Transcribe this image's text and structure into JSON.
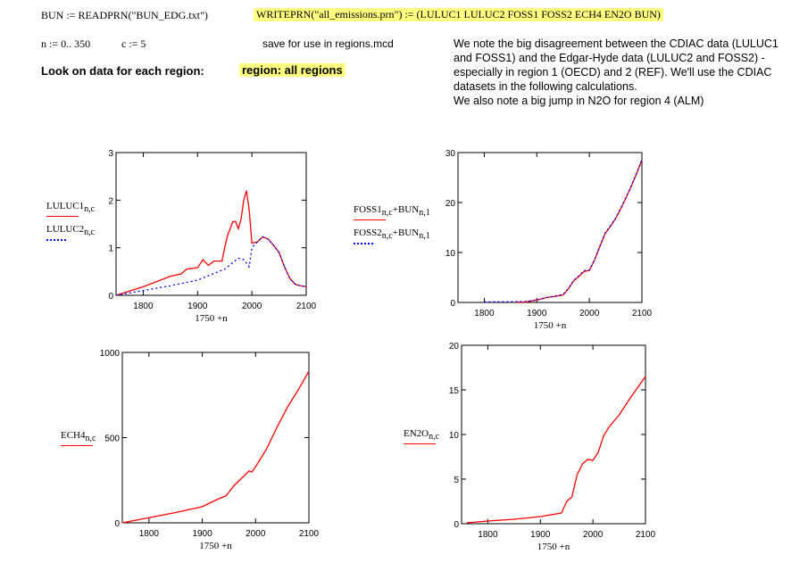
{
  "header": {
    "readprn": "BUN := READPRN(\"BUN_EDG.txt\")",
    "writeprn": "WRITEPRN(\"all_emissions.prn\") := (LULUC1  LULUC2  FOSS1  FOSS2  ECH4  EN2O  BUN)",
    "range_n": "n := 0.. 350",
    "c_def": "c := 5",
    "save_note": "save for use in regions.mcd",
    "look_label": "Look on data for each region:",
    "region_value": "region: all regions",
    "note_lines": [
      "We note the big disagreement between the CDIAC data (LULUC1",
      "and FOSS1) and the Edgar-Hyde data (LULUC2 and FOSS2) -",
      "especially in region 1 (OECD) and 2 (REF). We'll use the CDIAC",
      "datasets in the following calculations.",
      "We also note a big jump in N2O for region 4 (ALM)"
    ]
  },
  "colors": {
    "series1": "#ff0000",
    "series2": "#0000ff",
    "highlight": "#ffff80"
  },
  "chart_data": [
    {
      "type": "line",
      "xlabel": "1750 +n",
      "xlim": [
        1750,
        2100
      ],
      "ylim": [
        0,
        3
      ],
      "xticks": [
        "1800",
        "1900",
        "2000",
        "2100"
      ],
      "yticks": [
        "0",
        "1",
        "2",
        "3"
      ],
      "grid": false,
      "legend": "left",
      "series": [
        {
          "name": "LULUC1",
          "sub": "n,c",
          "style": "solid",
          "color": "#ff0000",
          "x": [
            1750,
            1800,
            1850,
            1870,
            1880,
            1900,
            1910,
            1920,
            1930,
            1945,
            1950,
            1955,
            1965,
            1970,
            1975,
            1980,
            1985,
            1990,
            1995,
            2000,
            2010,
            2020,
            2030,
            2040,
            2050,
            2060,
            2070,
            2080,
            2090,
            2100
          ],
          "y": [
            0,
            0.18,
            0.4,
            0.45,
            0.55,
            0.58,
            0.75,
            0.63,
            0.72,
            0.72,
            1.0,
            1.25,
            1.55,
            1.55,
            1.4,
            1.6,
            2.0,
            2.2,
            1.8,
            1.1,
            1.12,
            1.23,
            1.18,
            1.05,
            0.9,
            0.6,
            0.35,
            0.23,
            0.2,
            0.18
          ]
        },
        {
          "name": "LULUC2",
          "sub": "n,c",
          "style": "dotted",
          "color": "#0000ff",
          "x": [
            1750,
            1800,
            1850,
            1900,
            1950,
            1975,
            1985,
            1995,
            2000,
            2010,
            2020,
            2030,
            2040,
            2050,
            2060,
            2070,
            2080,
            2090,
            2100
          ],
          "y": [
            0,
            0.1,
            0.2,
            0.32,
            0.55,
            0.78,
            0.75,
            0.6,
            1.0,
            1.12,
            1.23,
            1.18,
            1.05,
            0.9,
            0.6,
            0.35,
            0.23,
            0.2,
            0.18
          ]
        }
      ]
    },
    {
      "type": "line",
      "xlabel": "1750 +n",
      "xlim": [
        1750,
        2100
      ],
      "ylim": [
        0,
        30
      ],
      "xticks": [
        "1800",
        "1900",
        "2000",
        "2100"
      ],
      "yticks": [
        "0",
        "10",
        "20",
        "30"
      ],
      "grid": false,
      "legend": "left",
      "series": [
        {
          "name": "FOSS1",
          "sub": "n,c",
          "plus": "+BUN",
          "sub2": "n,1",
          "style": "solid",
          "color": "#ff0000",
          "x": [
            1860,
            1880,
            1900,
            1920,
            1940,
            1950,
            1960,
            1970,
            1980,
            1990,
            2000,
            2010,
            2020,
            2030,
            2040,
            2050,
            2060,
            2070,
            2080,
            2090,
            2100
          ],
          "y": [
            0.05,
            0.1,
            0.5,
            1.0,
            1.3,
            1.5,
            2.7,
            4.3,
            5.2,
            6.2,
            6.4,
            8.5,
            11.2,
            13.8,
            15.2,
            16.8,
            18.8,
            21,
            23.3,
            25.8,
            28.5
          ]
        },
        {
          "name": "FOSS2",
          "sub": "n,c",
          "plus": "+BUN",
          "sub2": "n,1",
          "style": "dotted",
          "color": "#0000ff",
          "x": [
            1800,
            1850,
            1880,
            1900,
            1920,
            1940,
            1950,
            1960,
            1970,
            1980,
            1990,
            2000,
            2010,
            2020,
            2030,
            2040,
            2050,
            2060,
            2070,
            2080,
            2090,
            2100
          ],
          "y": [
            0.1,
            0.15,
            0.2,
            0.5,
            1.0,
            1.4,
            1.6,
            2.8,
            4.4,
            5.3,
            6.4,
            6.5,
            8.6,
            11.3,
            13.9,
            15.3,
            16.9,
            18.9,
            21.1,
            23.4,
            25.9,
            28.6
          ]
        }
      ]
    },
    {
      "type": "line",
      "xlabel": "1750 +n",
      "xlim": [
        1750,
        2100
      ],
      "ylim": [
        0,
        1000
      ],
      "xticks": [
        "1800",
        "1900",
        "2000",
        "2100"
      ],
      "yticks": [
        "0",
        "500",
        "1000"
      ],
      "grid": false,
      "legend": "left",
      "series": [
        {
          "name": "ECH4",
          "sub": "n,c",
          "style": "solid",
          "color": "#ff0000",
          "x": [
            1750,
            1800,
            1850,
            1900,
            1930,
            1945,
            1960,
            1980,
            1988,
            1993,
            2000,
            2020,
            2040,
            2060,
            2080,
            2100
          ],
          "y": [
            0,
            30,
            60,
            95,
            140,
            160,
            220,
            280,
            305,
            298,
            330,
            430,
            560,
            680,
            780,
            890
          ]
        }
      ]
    },
    {
      "type": "line",
      "xlabel": "1750 +n",
      "xlim": [
        1750,
        2100
      ],
      "ylim": [
        0,
        20
      ],
      "xticks": [
        "1800",
        "1900",
        "2000",
        "2100"
      ],
      "yticks": [
        "0",
        "5",
        "10",
        "15",
        "20"
      ],
      "grid": false,
      "legend": "left",
      "series": [
        {
          "name": "EN2O",
          "sub": "n,c",
          "style": "solid",
          "color": "#ff0000",
          "x": [
            1760,
            1800,
            1850,
            1900,
            1940,
            1950,
            1960,
            1970,
            1980,
            1990,
            2000,
            2010,
            2020,
            2030,
            2050,
            2070,
            2100
          ],
          "y": [
            0.1,
            0.3,
            0.5,
            0.8,
            1.2,
            2.5,
            3.0,
            5.5,
            6.7,
            7.2,
            7.1,
            8.0,
            9.8,
            10.8,
            12.2,
            14.0,
            16.5
          ]
        }
      ]
    }
  ]
}
